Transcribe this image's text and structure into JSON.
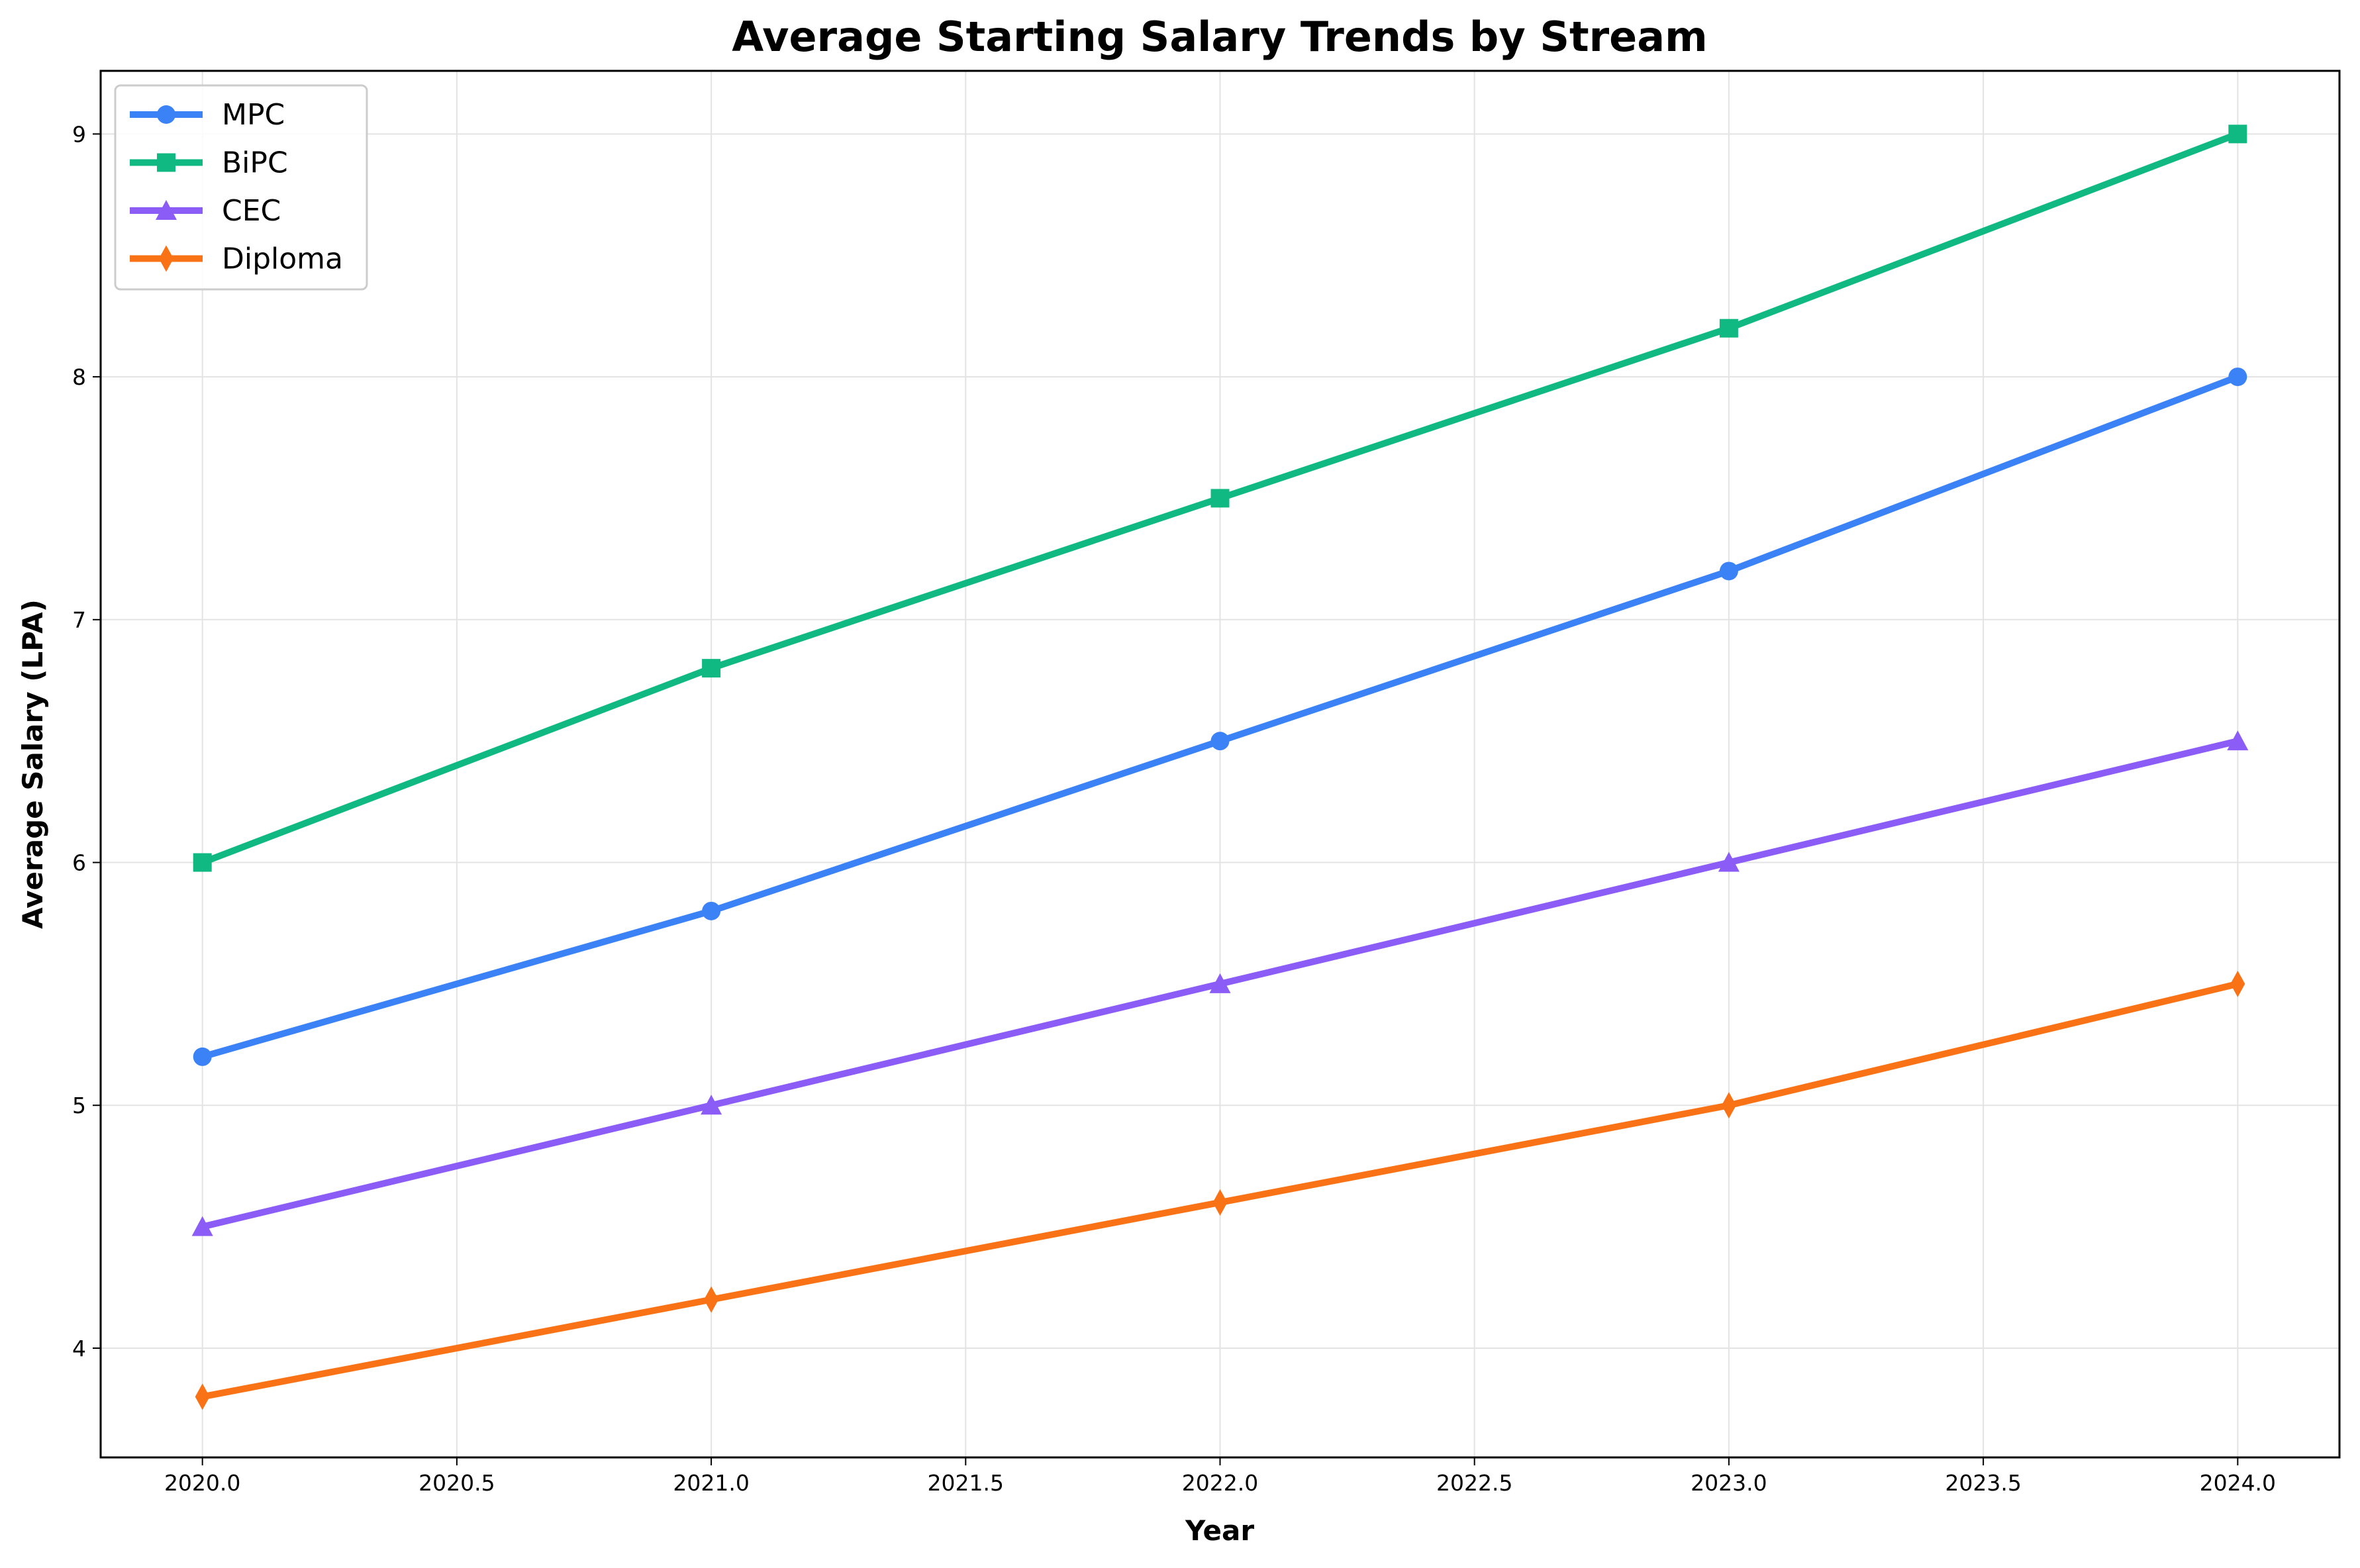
{
  "chart_data": {
    "type": "line",
    "title": "Average Starting Salary Trends by Stream",
    "xlabel": "Year",
    "ylabel": "Average Salary (LPA)",
    "xlim": [
      2019.8,
      2024.2
    ],
    "ylim": [
      3.55,
      9.26
    ],
    "x_ticks": [
      2020.0,
      2020.5,
      2021.0,
      2021.5,
      2022.0,
      2022.5,
      2023.0,
      2023.5,
      2024.0
    ],
    "x_tick_labels": [
      "2020.0",
      "2020.5",
      "2021.0",
      "2021.5",
      "2022.0",
      "2022.5",
      "2023.0",
      "2023.5",
      "2024.0"
    ],
    "y_ticks": [
      4,
      5,
      6,
      7,
      8,
      9
    ],
    "y_tick_labels": [
      "4",
      "5",
      "6",
      "7",
      "8",
      "9"
    ],
    "grid": true,
    "legend_position": "top-left",
    "x": [
      2020,
      2021,
      2022,
      2023,
      2024
    ],
    "series": [
      {
        "name": "MPC",
        "values": [
          5.2,
          5.8,
          6.5,
          7.2,
          8.0
        ],
        "color": "#3b82f6",
        "marker": "circle"
      },
      {
        "name": "BiPC",
        "values": [
          6.0,
          6.8,
          7.5,
          8.2,
          9.0
        ],
        "color": "#10b981",
        "marker": "square"
      },
      {
        "name": "CEC",
        "values": [
          4.5,
          5.0,
          5.5,
          6.0,
          6.5
        ],
        "color": "#8b5cf6",
        "marker": "triangle"
      },
      {
        "name": "Diploma",
        "values": [
          3.8,
          4.2,
          4.6,
          5.0,
          5.5
        ],
        "color": "#f97316",
        "marker": "diamond"
      }
    ]
  }
}
